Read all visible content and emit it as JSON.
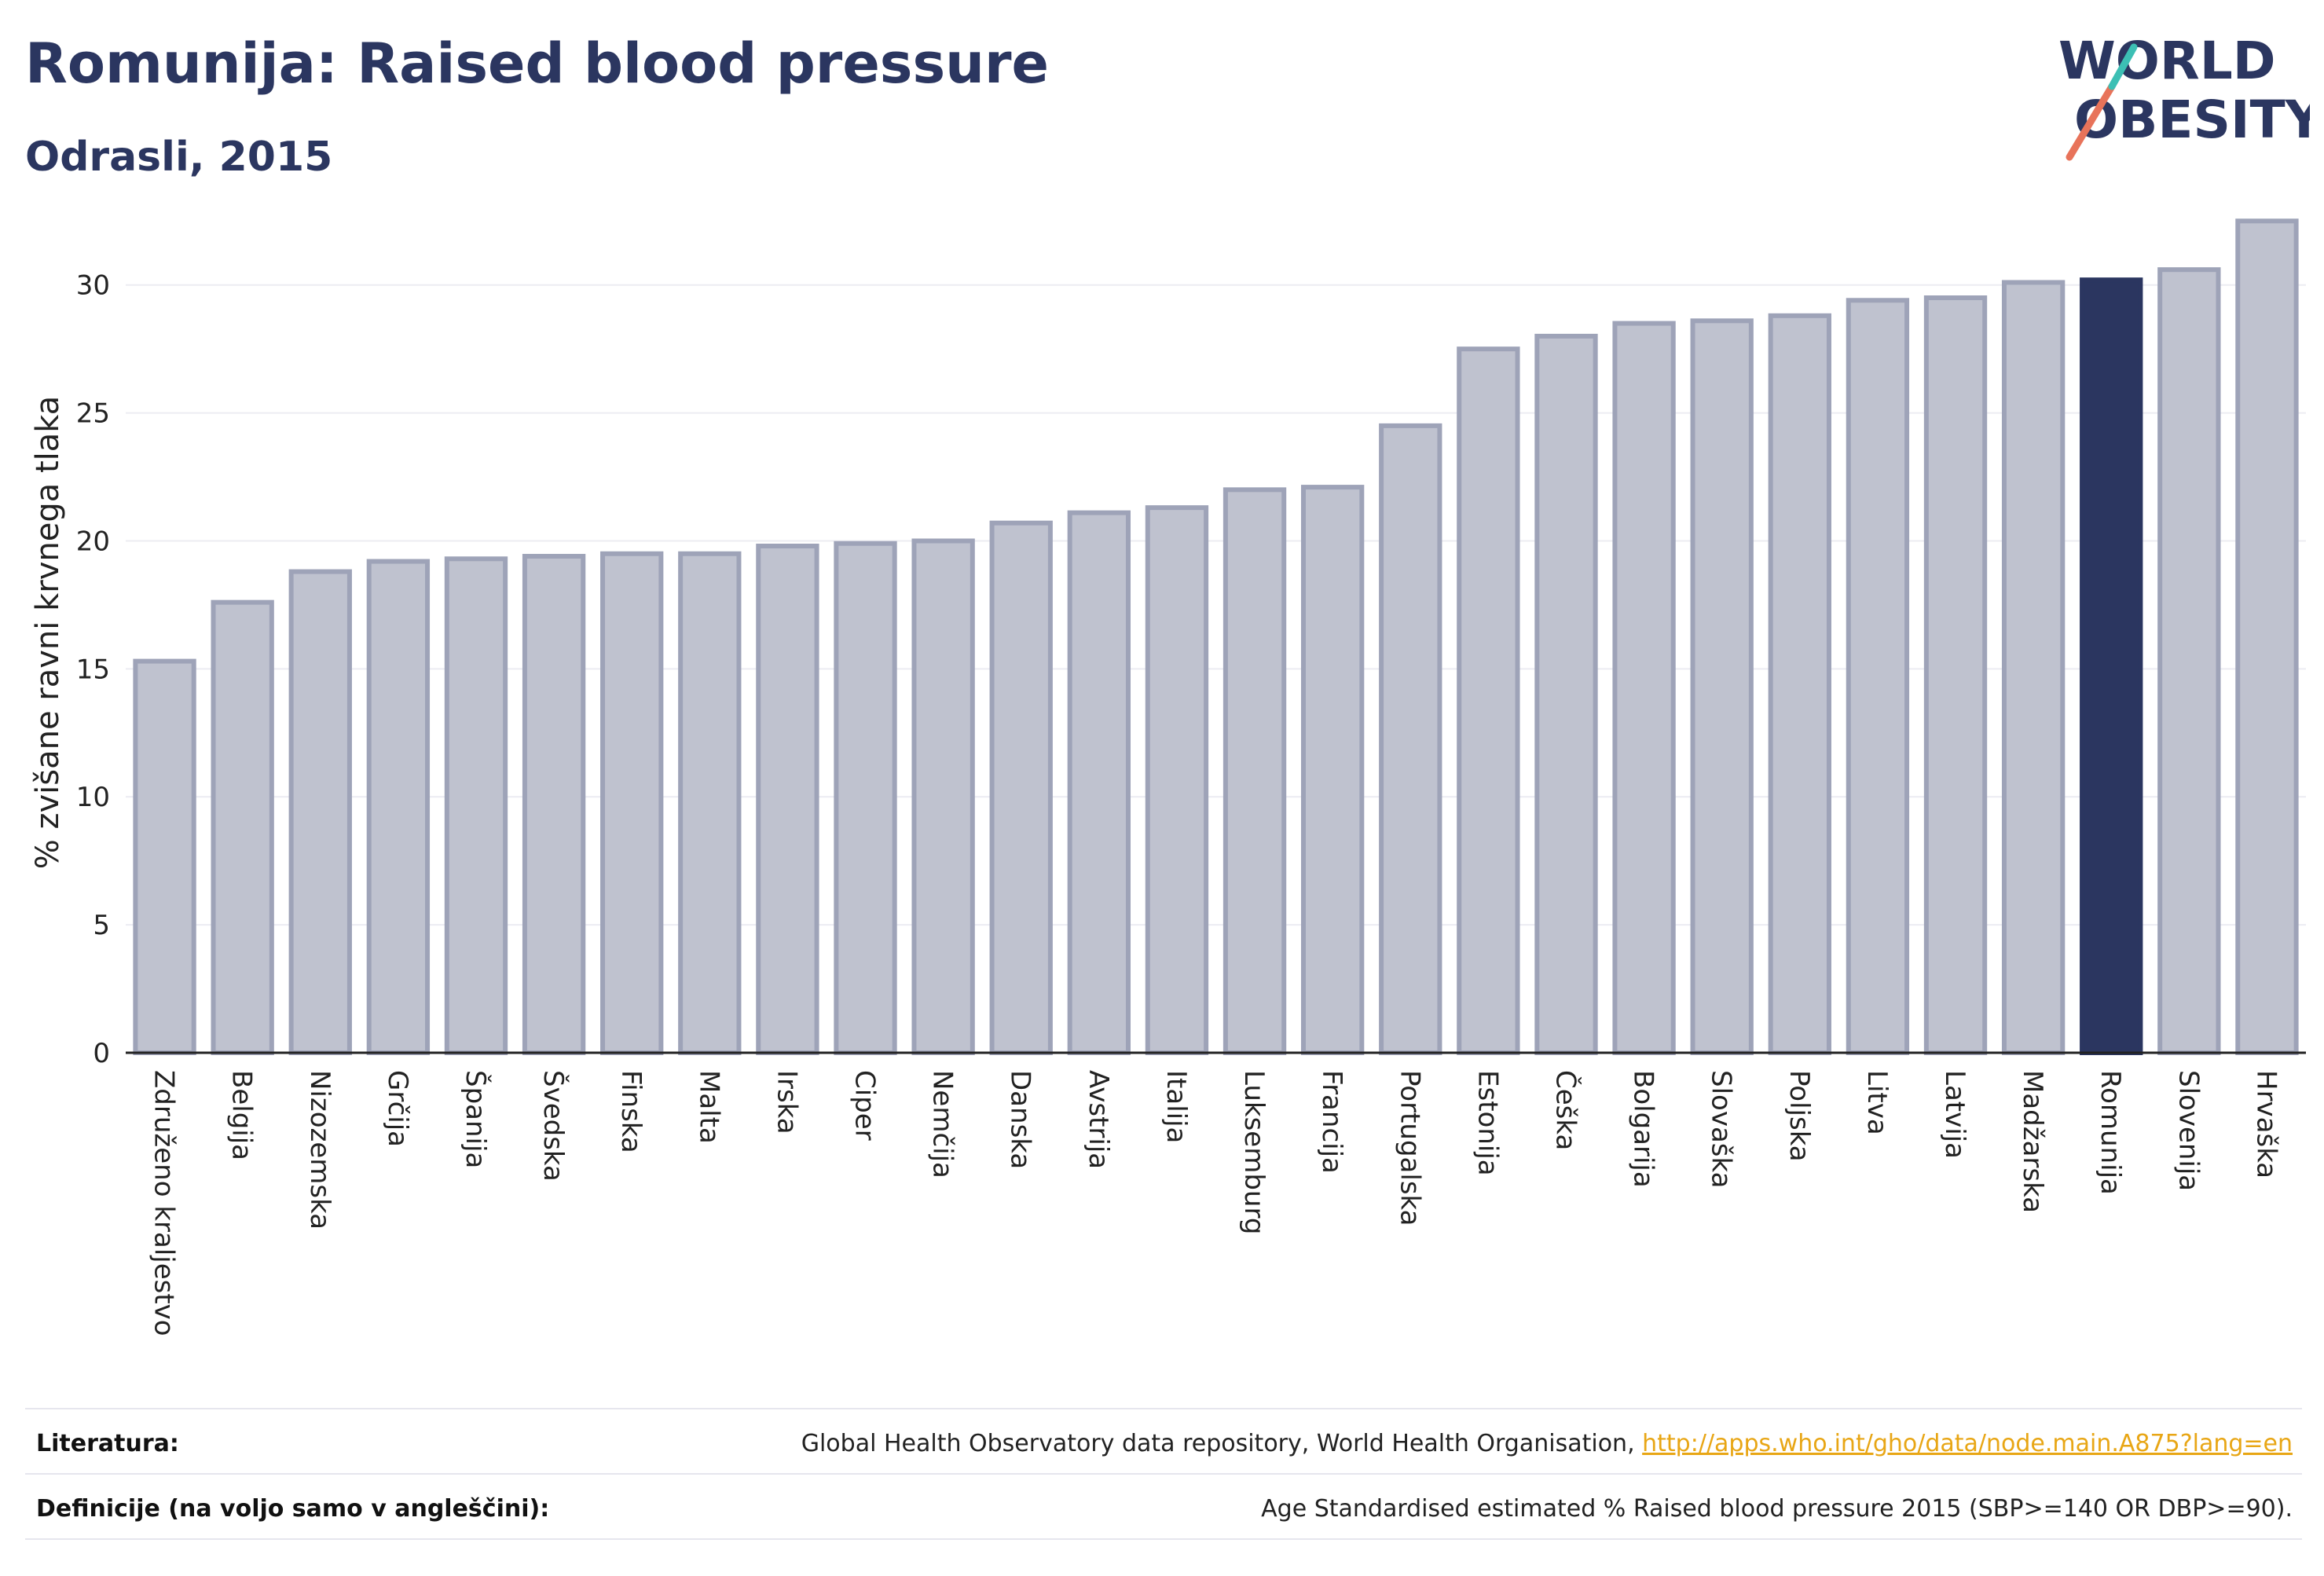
{
  "header": {
    "title": "Romunija: Raised blood pressure",
    "subtitle": "Odrasli, 2015"
  },
  "logo": {
    "line1": "WORLD",
    "line2": "OBESITY",
    "text_color": "#2b3660",
    "slash_colors": [
      "#e8735a",
      "#3cbfb4"
    ]
  },
  "footer": {
    "references_label": "Literatura:",
    "references_text": "Global Health Observatory data repository, World Health Organisation, ",
    "references_link": "http://apps.who.int/gho/data/node.main.A875?lang=en",
    "definitions_label": "Definicije (na voljo samo v angleščini):",
    "definitions_text": "Age Standardised estimated % Raised blood pressure 2015 (SBP>=140 OR DBP>=90)."
  },
  "chart_data": {
    "type": "bar",
    "ylabel": "% zvišane ravni krvnega tlaka",
    "ylim": [
      0,
      33
    ],
    "yticks": [
      0,
      5,
      10,
      15,
      20,
      25,
      30
    ],
    "grid": true,
    "highlight": "Romunija",
    "colors": {
      "bar": "#bfc2cf",
      "bar_border": "#9ea3b8",
      "highlight": "#2b3660",
      "grid": "#ececf2"
    },
    "categories": [
      "Združeno kraljestvo",
      "Belgija",
      "Nizozemska",
      "Grčija",
      "Španija",
      "Švedska",
      "Finska",
      "Malta",
      "Irska",
      "Ciper",
      "Nemčija",
      "Danska",
      "Avstrija",
      "Italija",
      "Luksemburg",
      "Francija",
      "Portugalska",
      "Estonija",
      "Češka",
      "Bolgarija",
      "Slovaška",
      "Poljska",
      "Litva",
      "Latvija",
      "Madžarska",
      "Romunija",
      "Slovenija",
      "Hrvaška"
    ],
    "values": [
      15.3,
      17.6,
      18.8,
      19.2,
      19.3,
      19.4,
      19.5,
      19.5,
      19.8,
      19.9,
      20.0,
      20.7,
      21.1,
      21.3,
      22.0,
      22.1,
      24.5,
      27.5,
      28.0,
      28.5,
      28.6,
      28.8,
      29.4,
      29.5,
      30.1,
      30.2,
      30.6,
      32.5
    ]
  }
}
